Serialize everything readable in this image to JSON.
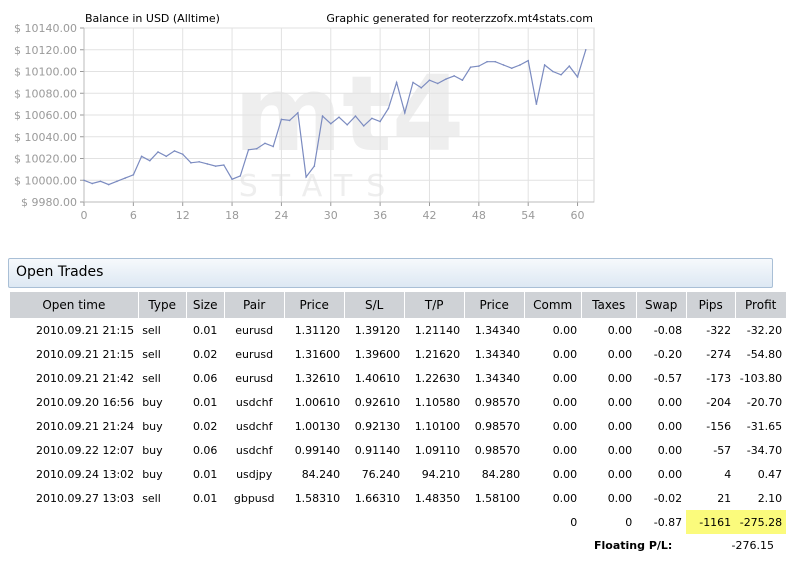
{
  "chart_data": {
    "type": "line",
    "title": "Balance in USD (Alltime)",
    "subtitle": "Graphic generated for reoterzzofx.mt4stats.com",
    "watermark": "mt4 STATS",
    "xlabel": "",
    "ylabel": "",
    "xlim": [
      0,
      62
    ],
    "ylim": [
      9980,
      10140
    ],
    "x_ticks": [
      0,
      6,
      12,
      18,
      24,
      30,
      36,
      42,
      48,
      54,
      60
    ],
    "y_ticks": [
      9980,
      10000,
      10020,
      10040,
      10060,
      10080,
      10100,
      10120,
      10140
    ],
    "y_tick_labels": [
      "$ 9980.00",
      "$ 10000.00",
      "$ 10020.00",
      "$ 10040.00",
      "$ 10060.00",
      "$ 10080.00",
      "$ 10100.00",
      "$ 10120.00",
      "$ 10140.00"
    ],
    "line_color": "#7b8bc0",
    "grid": true,
    "series": [
      {
        "x": [
          0,
          1,
          2,
          3,
          4,
          5,
          6,
          7,
          8,
          9,
          10,
          11,
          12,
          13,
          14,
          15,
          16,
          17,
          18,
          19,
          20,
          21,
          22,
          23,
          24,
          25,
          26,
          27,
          28,
          29,
          30,
          31,
          32,
          33,
          34,
          35,
          36,
          37,
          38,
          39,
          40,
          41,
          42,
          43,
          44,
          45,
          46,
          47,
          48,
          49,
          50,
          51,
          52,
          53,
          54,
          55,
          56,
          57,
          58,
          59,
          60,
          61
        ],
        "y": [
          10000,
          9997,
          9999,
          9996,
          9999,
          10002,
          10005,
          10022,
          10018,
          10026,
          10022,
          10027,
          10024,
          10016,
          10017,
          10015,
          10013,
          10014,
          10001,
          10004,
          10028,
          10029,
          10034,
          10031,
          10056,
          10055,
          10062,
          10003,
          10013,
          10059,
          10052,
          10058,
          10051,
          10059,
          10050,
          10057,
          10054,
          10066,
          10090,
          10062,
          10090,
          10085,
          10092,
          10089,
          10093,
          10096,
          10092,
          10104,
          10105,
          10109,
          10109,
          10106,
          10103,
          10106,
          10110,
          10070,
          10106,
          10100,
          10097,
          10105,
          10095,
          10120
        ]
      }
    ]
  },
  "section": {
    "title": "Open Trades"
  },
  "table": {
    "headers": [
      "Open time",
      "Type",
      "Size",
      "Pair",
      "Price",
      "S/L",
      "T/P",
      "Price",
      "Comm",
      "Taxes",
      "Swap",
      "Pips",
      "Profit"
    ],
    "rows": [
      [
        "2010.09.21 21:15",
        "sell",
        "0.01",
        "eurusd",
        "1.31120",
        "1.39120",
        "1.21140",
        "1.34340",
        "0.00",
        "0.00",
        "-0.08",
        "-322",
        "-32.20"
      ],
      [
        "2010.09.21 21:15",
        "sell",
        "0.02",
        "eurusd",
        "1.31600",
        "1.39600",
        "1.21620",
        "1.34340",
        "0.00",
        "0.00",
        "-0.20",
        "-274",
        "-54.80"
      ],
      [
        "2010.09.21 21:42",
        "sell",
        "0.06",
        "eurusd",
        "1.32610",
        "1.40610",
        "1.22630",
        "1.34340",
        "0.00",
        "0.00",
        "-0.57",
        "-173",
        "-103.80"
      ],
      [
        "2010.09.20 16:56",
        "buy",
        "0.01",
        "usdchf",
        "1.00610",
        "0.92610",
        "1.10580",
        "0.98570",
        "0.00",
        "0.00",
        "0.00",
        "-204",
        "-20.70"
      ],
      [
        "2010.09.21 21:24",
        "buy",
        "0.02",
        "usdchf",
        "1.00130",
        "0.92130",
        "1.10100",
        "0.98570",
        "0.00",
        "0.00",
        "0.00",
        "-156",
        "-31.65"
      ],
      [
        "2010.09.22 12:07",
        "buy",
        "0.06",
        "usdchf",
        "0.99140",
        "0.91140",
        "1.09110",
        "0.98570",
        "0.00",
        "0.00",
        "0.00",
        "-57",
        "-34.70"
      ],
      [
        "2010.09.24 13:02",
        "buy",
        "0.01",
        "usdjpy",
        "84.240",
        "76.240",
        "94.210",
        "84.280",
        "0.00",
        "0.00",
        "0.00",
        "4",
        "0.47"
      ],
      [
        "2010.09.27 13:03",
        "sell",
        "0.01",
        "gbpusd",
        "1.58310",
        "1.66310",
        "1.48350",
        "1.58100",
        "0.00",
        "0.00",
        "-0.02",
        "21",
        "2.10"
      ]
    ],
    "totals": {
      "comm": "0",
      "taxes": "0",
      "swap": "-0.87",
      "pips": "-1161",
      "profit": "-275.28"
    },
    "highlight_color": "#fbfb7c"
  },
  "floating": {
    "label": "Floating P/L:",
    "value": "-276.15"
  }
}
